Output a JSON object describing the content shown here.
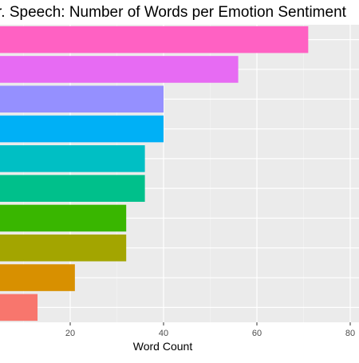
{
  "chart_data": {
    "type": "bar",
    "orientation": "horizontal",
    "title": "r. Speech: Number of Words per Emotion Sentiment",
    "xlabel": "Word Count",
    "ylabel": "",
    "xlim": [
      0,
      82
    ],
    "x_ticks": [
      20,
      40,
      60,
      80
    ],
    "grid": true,
    "values": [
      71,
      56,
      40,
      40,
      36,
      36,
      32,
      32,
      21,
      13
    ],
    "colors": [
      "#FF61C3",
      "#E76BF3",
      "#9590FF",
      "#00B0F6",
      "#00BFC4",
      "#00C08B",
      "#39B600",
      "#A3A500",
      "#D89000",
      "#F8766D"
    ]
  }
}
